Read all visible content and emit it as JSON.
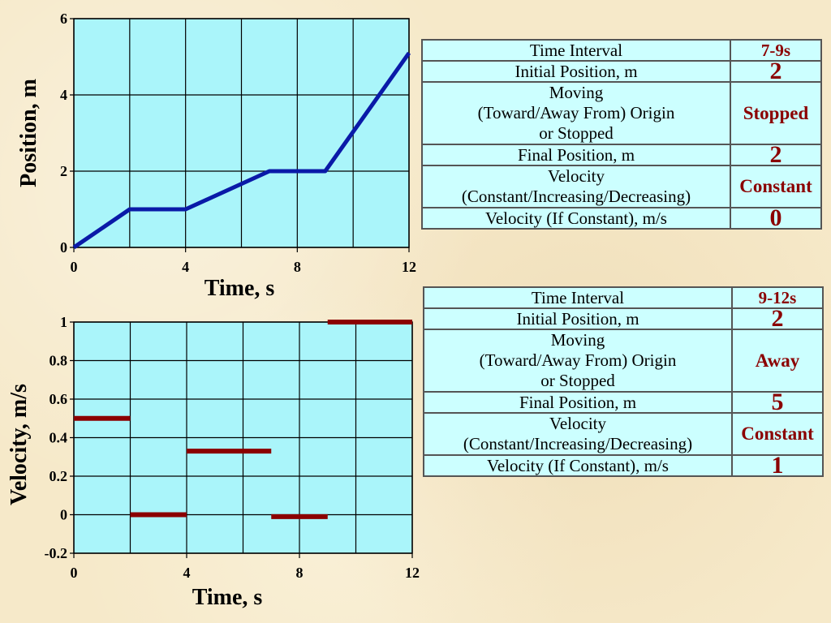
{
  "tables": [
    {
      "rows": [
        {
          "label": [
            "Time Interval"
          ],
          "value": "7-9s"
        },
        {
          "label": [
            "Initial Position, m"
          ],
          "value": "2"
        },
        {
          "label": [
            "Moving",
            "(Toward/Away From) Origin",
            "or Stopped"
          ],
          "value": "Stopped"
        },
        {
          "label": [
            "Final Position, m"
          ],
          "value": "2"
        },
        {
          "label": [
            "Velocity",
            "(Constant/Increasing/Decreasing)"
          ],
          "value": "Constant"
        },
        {
          "label": [
            "Velocity (If Constant), m/s"
          ],
          "value": "0"
        }
      ]
    },
    {
      "rows": [
        {
          "label": [
            "Time Interval"
          ],
          "value": "9-12s"
        },
        {
          "label": [
            "Initial Position, m"
          ],
          "value": "2"
        },
        {
          "label": [
            "Moving",
            "(Toward/Away From) Origin",
            "or Stopped"
          ],
          "value": "Away"
        },
        {
          "label": [
            "Final Position, m"
          ],
          "value": "5"
        },
        {
          "label": [
            "Velocity",
            "(Constant/Increasing/Decreasing)"
          ],
          "value": "Constant"
        },
        {
          "label": [
            "Velocity (If Constant), m/s"
          ],
          "value": "1"
        }
      ]
    }
  ],
  "chart_data": [
    {
      "type": "line",
      "xlabel": "Time, s",
      "ylabel": "Position, m",
      "xlim": [
        0,
        12
      ],
      "ylim": [
        0,
        6
      ],
      "xticks": [
        0,
        4,
        8,
        12
      ],
      "yticks": [
        0,
        2,
        4,
        6
      ],
      "grid": true,
      "line_color": "#0a1aa8",
      "plot_bg": "#aaf5fa",
      "series": [
        {
          "x": [
            0,
            2,
            4,
            7,
            9,
            12
          ],
          "y": [
            0,
            1,
            1,
            2,
            2,
            5.1
          ]
        }
      ]
    },
    {
      "type": "line",
      "xlabel": "Time, s",
      "ylabel": "Velocity, m/s",
      "xlim": [
        0,
        12
      ],
      "ylim": [
        -0.2,
        1
      ],
      "xticks": [
        0,
        4,
        8,
        12
      ],
      "yticks": [
        -0.2,
        0,
        0.2,
        0.4,
        0.6,
        0.8,
        1
      ],
      "ytick_labels": [
        "-0.2",
        "0",
        "0.2",
        "0.4",
        "0.6",
        "0.8",
        "1"
      ],
      "grid": true,
      "line_color": "#8b0000",
      "plot_bg": "#aaf5fa",
      "segments": [
        {
          "x0": 0,
          "x1": 2,
          "y": 0.5
        },
        {
          "x0": 2,
          "x1": 4,
          "y": 0
        },
        {
          "x0": 4,
          "x1": 7,
          "y": 0.33
        },
        {
          "x0": 7,
          "x1": 9,
          "y": -0.01
        },
        {
          "x0": 9,
          "x1": 12,
          "y": 1
        }
      ]
    }
  ]
}
